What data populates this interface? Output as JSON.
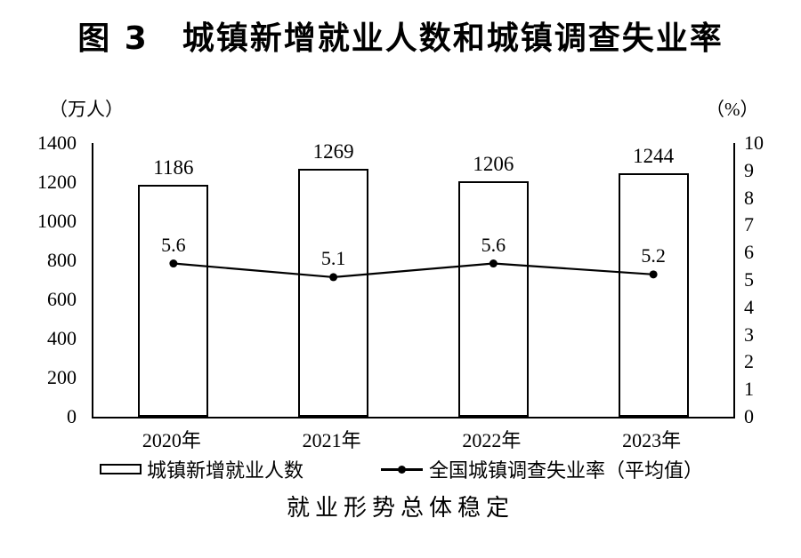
{
  "figure": {
    "title": "图 3　城镇新增就业人数和城镇调查失业率",
    "caption": "就业形势总体稳定"
  },
  "chart_data": {
    "type": "bar+line",
    "title": "图 3　城镇新增就业人数和城镇调查失业率",
    "categories": [
      "2020年",
      "2021年",
      "2022年",
      "2023年"
    ],
    "series": [
      {
        "name": "城镇新增就业人数",
        "type": "bar",
        "axis": "left",
        "values": [
          1186,
          1269,
          1206,
          1244
        ]
      },
      {
        "name": "全国城镇调查失业率（平均值）",
        "type": "line",
        "axis": "right",
        "values": [
          5.6,
          5.1,
          5.6,
          5.2
        ]
      }
    ],
    "left_axis": {
      "label": "（万人）",
      "min": 0,
      "max": 1400,
      "step": 200,
      "ticks": [
        1400,
        1200,
        1000,
        800,
        600,
        400,
        200,
        0
      ]
    },
    "right_axis": {
      "label": "（%）",
      "min": 0,
      "max": 10,
      "step": 1,
      "ticks": [
        10,
        9,
        8,
        7,
        6,
        5,
        4,
        3,
        2,
        1,
        0
      ]
    },
    "legend_position": "bottom",
    "grid": false,
    "colors": {
      "background": "#ffffff",
      "bar_fill": "#ffffff",
      "bar_border": "#000000",
      "line": "#000000",
      "text": "#000000"
    }
  }
}
